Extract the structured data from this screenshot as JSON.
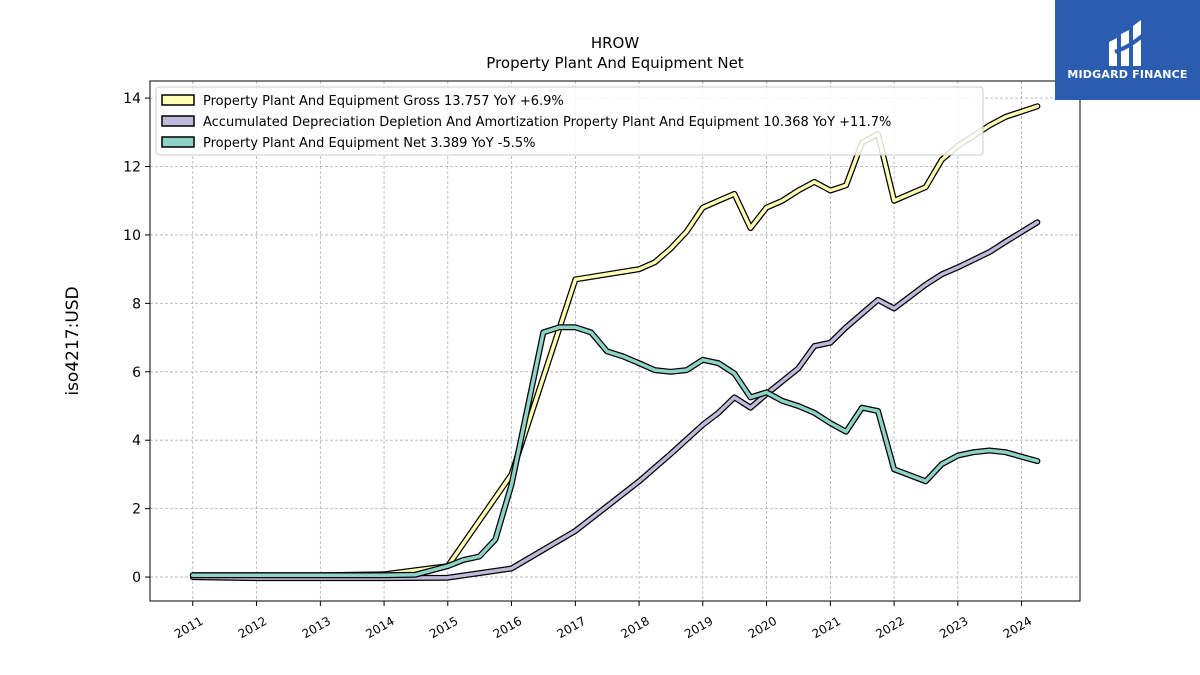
{
  "chart_data": {
    "type": "line",
    "title": "HROW",
    "subtitle": "Property Plant And Equipment Net",
    "ylabel": "iso4217:USD",
    "xlabel": "",
    "ylim": [
      -0.7,
      14.5
    ],
    "yticks": [
      0,
      2,
      4,
      6,
      8,
      10,
      12,
      14
    ],
    "xlim": [
      "2010-05-01",
      "2024-12-01"
    ],
    "xticks": [
      "2011",
      "2012",
      "2013",
      "2014",
      "2015",
      "2016",
      "2017",
      "2018",
      "2019",
      "2020",
      "2021",
      "2022",
      "2023",
      "2024"
    ],
    "grid": true,
    "legend_position": "top-left",
    "series": [
      {
        "name": "Property Plant And Equipment Gross",
        "legend": "Property Plant And Equipment Gross  13.757 YoY +6.9%",
        "color": "#ffffb3",
        "points": [
          [
            "2011-01-01",
            0.05
          ],
          [
            "2012-01-01",
            0.05
          ],
          [
            "2013-01-01",
            0.05
          ],
          [
            "2014-01-01",
            0.08
          ],
          [
            "2014-06-30",
            0.2
          ],
          [
            "2015-01-01",
            0.32
          ],
          [
            "2016-01-01",
            3.0
          ],
          [
            "2017-01-01",
            8.7
          ],
          [
            "2018-01-01",
            9.0
          ],
          [
            "2018-04-01",
            9.2
          ],
          [
            "2018-07-01",
            9.6
          ],
          [
            "2018-10-01",
            10.1
          ],
          [
            "2019-01-01",
            10.8
          ],
          [
            "2019-04-01",
            11.0
          ],
          [
            "2019-07-01",
            11.2
          ],
          [
            "2019-10-01",
            10.2
          ],
          [
            "2020-01-01",
            10.8
          ],
          [
            "2020-04-01",
            11.0
          ],
          [
            "2020-07-01",
            11.3
          ],
          [
            "2020-10-01",
            11.55
          ],
          [
            "2021-01-01",
            11.3
          ],
          [
            "2021-04-01",
            11.45
          ],
          [
            "2021-07-01",
            12.7
          ],
          [
            "2021-10-01",
            12.95
          ],
          [
            "2022-01-01",
            11.0
          ],
          [
            "2022-07-01",
            11.4
          ],
          [
            "2022-10-01",
            12.2
          ],
          [
            "2023-01-01",
            12.6
          ],
          [
            "2023-07-01",
            13.2
          ],
          [
            "2023-10-01",
            13.45
          ],
          [
            "2024-04-01",
            13.76
          ]
        ]
      },
      {
        "name": "Accumulated Depreciation Depletion And Amortization Property Plant And Equipment",
        "legend": "Accumulated Depreciation Depletion And Amortization Property Plant And Equipment  10.368 YoY +11.7%",
        "color": "#bebada",
        "points": [
          [
            "2011-01-01",
            0.0
          ],
          [
            "2012-01-01",
            -0.03
          ],
          [
            "2013-01-01",
            -0.03
          ],
          [
            "2014-01-01",
            -0.03
          ],
          [
            "2015-01-01",
            -0.02
          ],
          [
            "2016-01-01",
            0.25
          ],
          [
            "2017-01-01",
            1.35
          ],
          [
            "2018-01-01",
            2.8
          ],
          [
            "2018-07-01",
            3.6
          ],
          [
            "2019-01-01",
            4.45
          ],
          [
            "2019-04-01",
            4.8
          ],
          [
            "2019-07-01",
            5.25
          ],
          [
            "2019-10-01",
            4.95
          ],
          [
            "2020-01-01",
            5.35
          ],
          [
            "2020-07-01",
            6.1
          ],
          [
            "2020-10-01",
            6.75
          ],
          [
            "2021-01-01",
            6.85
          ],
          [
            "2021-04-01",
            7.3
          ],
          [
            "2021-10-01",
            8.1
          ],
          [
            "2022-01-01",
            7.85
          ],
          [
            "2022-07-01",
            8.55
          ],
          [
            "2022-10-01",
            8.85
          ],
          [
            "2023-01-01",
            9.05
          ],
          [
            "2023-07-01",
            9.5
          ],
          [
            "2023-10-01",
            9.8
          ],
          [
            "2024-04-01",
            10.37
          ]
        ]
      },
      {
        "name": "Property Plant And Equipment Net",
        "legend": "Property Plant And Equipment Net  3.389 YoY -5.5%",
        "color": "#8dd3c7",
        "points": [
          [
            "2011-01-01",
            0.05
          ],
          [
            "2012-01-01",
            0.05
          ],
          [
            "2013-01-01",
            0.05
          ],
          [
            "2014-01-01",
            0.05
          ],
          [
            "2014-06-30",
            0.07
          ],
          [
            "2015-01-01",
            0.32
          ],
          [
            "2015-04-01",
            0.5
          ],
          [
            "2015-07-01",
            0.6
          ],
          [
            "2015-10-01",
            1.1
          ],
          [
            "2016-01-01",
            2.7
          ],
          [
            "2016-07-01",
            7.15
          ],
          [
            "2016-10-01",
            7.3
          ],
          [
            "2017-01-01",
            7.3
          ],
          [
            "2017-04-01",
            7.15
          ],
          [
            "2017-07-01",
            6.6
          ],
          [
            "2017-10-01",
            6.45
          ],
          [
            "2018-01-01",
            6.25
          ],
          [
            "2018-04-01",
            6.05
          ],
          [
            "2018-07-01",
            6.0
          ],
          [
            "2018-10-01",
            6.05
          ],
          [
            "2019-01-01",
            6.35
          ],
          [
            "2019-04-01",
            6.25
          ],
          [
            "2019-07-01",
            5.95
          ],
          [
            "2019-10-01",
            5.25
          ],
          [
            "2020-01-01",
            5.4
          ],
          [
            "2020-04-01",
            5.15
          ],
          [
            "2020-07-01",
            5.0
          ],
          [
            "2020-10-01",
            4.8
          ],
          [
            "2021-01-01",
            4.5
          ],
          [
            "2021-04-01",
            4.25
          ],
          [
            "2021-07-01",
            4.95
          ],
          [
            "2021-10-01",
            4.85
          ],
          [
            "2022-01-01",
            3.15
          ],
          [
            "2022-07-01",
            2.8
          ],
          [
            "2022-10-01",
            3.3
          ],
          [
            "2023-01-01",
            3.55
          ],
          [
            "2023-04-01",
            3.65
          ],
          [
            "2023-07-01",
            3.7
          ],
          [
            "2023-10-01",
            3.65
          ],
          [
            "2024-04-01",
            3.39
          ]
        ]
      }
    ]
  },
  "logo": {
    "text": "MIDGARD FINANCE",
    "color": "#2a5db0"
  }
}
